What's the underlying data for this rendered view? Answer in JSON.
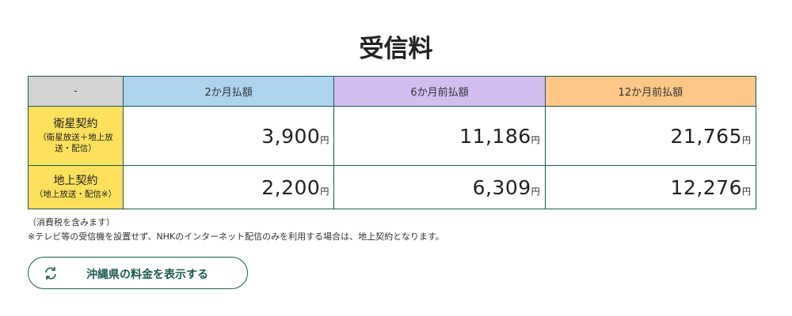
{
  "title": "受信料",
  "table": {
    "headers": [
      "-",
      "2か月払額",
      "6か月前払額",
      "12か月前払額"
    ],
    "header_colors": [
      "#d3d3d3",
      "#aed3ef",
      "#d4bef0",
      "#fdc887"
    ],
    "rows": [
      {
        "label": "衛星契約",
        "sublabel": "（衛星放送＋地上放送・配信）",
        "values": [
          "3,900",
          "11,186",
          "21,765"
        ]
      },
      {
        "label": "地上契約",
        "sublabel": "（地上放送・配信※）",
        "values": [
          "2,200",
          "6,309",
          "12,276"
        ]
      }
    ],
    "currency": "円"
  },
  "notes": [
    "（消費税を含みます）",
    "※テレビ等の受信機を設置せず、NHKのインターネット配信のみを利用する場合は、地上契約となります。"
  ],
  "button": {
    "label": "沖縄県の料金を表示する",
    "icon": "refresh-icon"
  }
}
